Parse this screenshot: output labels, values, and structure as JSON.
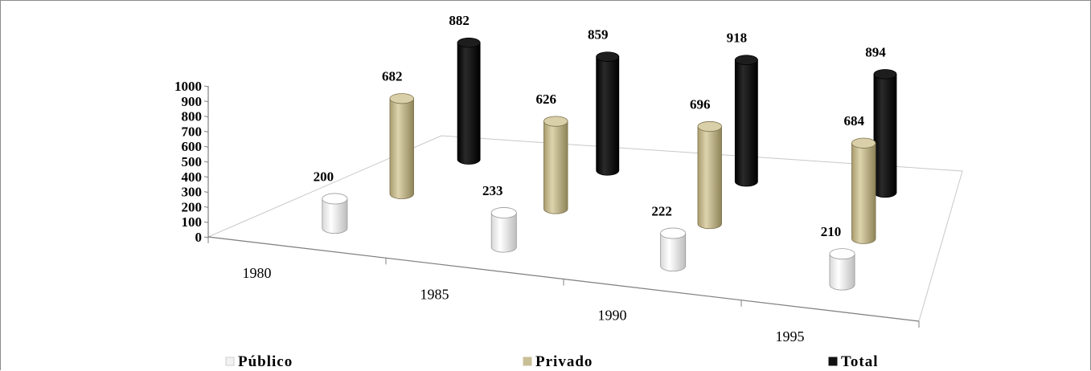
{
  "chart_data": {
    "type": "bar",
    "style": "3d-cylinder",
    "categories": [
      "1980",
      "1985",
      "1990",
      "1995"
    ],
    "series": [
      {
        "name": "Público",
        "values": [
          200,
          233,
          222,
          210
        ],
        "color": "#f2f2f2"
      },
      {
        "name": "Privado",
        "values": [
          682,
          626,
          696,
          684
        ],
        "color": "#c9bf97"
      },
      {
        "name": "Total",
        "values": [
          882,
          859,
          918,
          894
        ],
        "color": "#111111"
      }
    ],
    "y_ticks": [
      "0",
      "100",
      "200",
      "300",
      "400",
      "500",
      "600",
      "700",
      "800",
      "900",
      "1000"
    ],
    "ylim": [
      0,
      1000
    ],
    "grid": false,
    "legend_position": "bottom"
  }
}
